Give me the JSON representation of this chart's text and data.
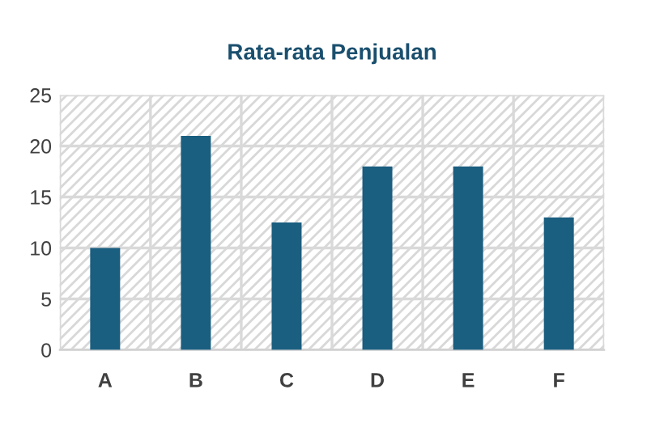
{
  "chart_data": {
    "type": "bar",
    "title": "Rata-rata Penjualan",
    "categories": [
      "A",
      "B",
      "C",
      "D",
      "E",
      "F"
    ],
    "values": [
      10,
      21,
      12.5,
      18,
      18,
      13
    ],
    "color": "#1a5e80",
    "ylim": [
      0,
      25
    ],
    "yticks": [
      0,
      5,
      10,
      15,
      20,
      25
    ],
    "grid": true
  }
}
